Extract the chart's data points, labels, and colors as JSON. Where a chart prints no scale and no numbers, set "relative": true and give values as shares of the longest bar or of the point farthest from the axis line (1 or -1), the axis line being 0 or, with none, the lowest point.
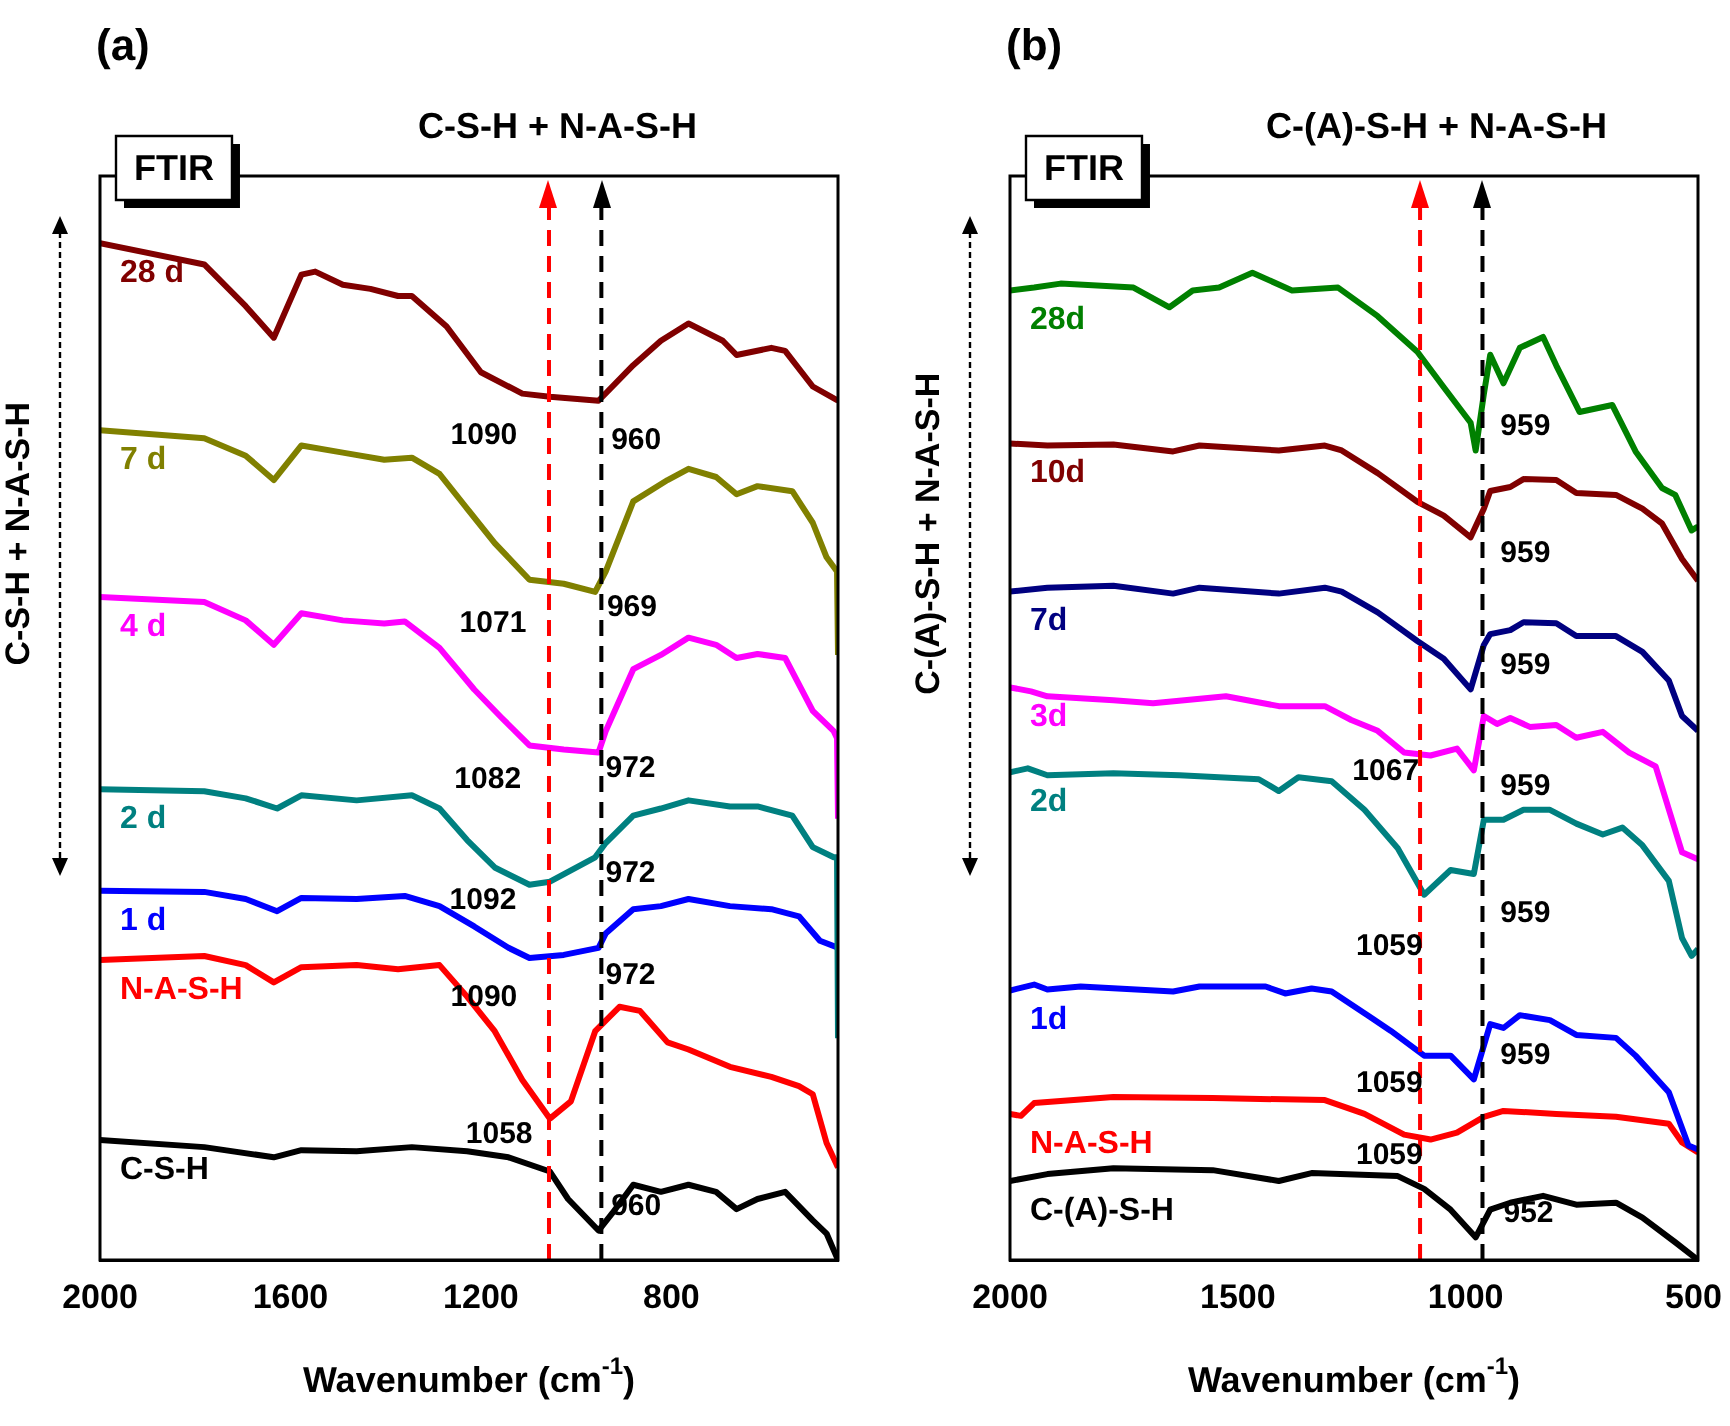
{
  "chart_data": [
    {
      "type": "line",
      "title": "C-S-H + N-A-S-H",
      "xlabel": "Wavenumber (cm$^{-1}$)",
      "ylabel": "C-S-H + N-A-S-H",
      "relative": true,
      "marker": "none",
      "xlim": [
        2000,
        450
      ],
      "xticks": [
        2000,
        1600,
        1200,
        800
      ],
      "series": [
        {
          "name": "28 d",
          "color": "#800000",
          "x": [
            2000,
            1781,
            1694,
            1635,
            1577,
            1548,
            1490,
            1432,
            1374,
            1345,
            1272,
            1200,
            1113,
            1055,
            953,
            880,
            822,
            764,
            692,
            663,
            590,
            561,
            503,
            450
          ],
          "values": [
            1.0,
            0.979,
            0.938,
            0.907,
            0.969,
            0.972,
            0.959,
            0.955,
            0.948,
            0.948,
            0.918,
            0.873,
            0.852,
            0.849,
            0.845,
            0.88,
            0.904,
            0.921,
            0.904,
            0.89,
            0.897,
            0.894,
            0.859,
            0.845
          ]
        },
        {
          "name": "7 d",
          "color": "#808000",
          "x": [
            2000,
            1781,
            1694,
            1635,
            1577,
            1490,
            1403,
            1345,
            1287,
            1229,
            1171,
            1098,
            1026,
            960,
            938,
            880,
            808,
            764,
            706,
            663,
            619,
            546,
            503,
            474,
            452,
            450
          ],
          "values": [
            0.816,
            0.808,
            0.791,
            0.767,
            0.801,
            0.794,
            0.787,
            0.789,
            0.773,
            0.739,
            0.705,
            0.669,
            0.665,
            0.657,
            0.677,
            0.746,
            0.767,
            0.778,
            0.77,
            0.753,
            0.761,
            0.756,
            0.725,
            0.691,
            0.677,
            0.595
          ]
        },
        {
          "name": "4 d",
          "color": "#ff00ff",
          "x": [
            2000,
            1781,
            1694,
            1635,
            1577,
            1490,
            1403,
            1360,
            1287,
            1214,
            1156,
            1098,
            1026,
            953,
            938,
            880,
            822,
            764,
            706,
            663,
            619,
            561,
            503,
            459,
            452,
            450
          ],
          "values": [
            0.652,
            0.647,
            0.629,
            0.605,
            0.636,
            0.629,
            0.626,
            0.628,
            0.602,
            0.561,
            0.533,
            0.506,
            0.502,
            0.499,
            0.52,
            0.581,
            0.595,
            0.612,
            0.605,
            0.592,
            0.596,
            0.592,
            0.54,
            0.52,
            0.513,
            0.434
          ]
        },
        {
          "name": "2 d",
          "color": "#008080",
          "x": [
            2000,
            1781,
            1694,
            1628,
            1577,
            1461,
            1345,
            1287,
            1229,
            1171,
            1098,
            1055,
            960,
            938,
            880,
            822,
            764,
            677,
            619,
            546,
            503,
            459,
            452,
            450
          ],
          "values": [
            0.463,
            0.461,
            0.454,
            0.444,
            0.457,
            0.452,
            0.457,
            0.444,
            0.413,
            0.386,
            0.369,
            0.372,
            0.396,
            0.41,
            0.437,
            0.444,
            0.452,
            0.446,
            0.446,
            0.437,
            0.406,
            0.396,
            0.396,
            0.218
          ]
        },
        {
          "name": "1 d",
          "color": "#0000ff",
          "x": [
            2000,
            1781,
            1694,
            1628,
            1577,
            1461,
            1360,
            1287,
            1214,
            1142,
            1098,
            1026,
            953,
            938,
            880,
            822,
            764,
            677,
            590,
            532,
            488,
            450
          ],
          "values": [
            0.363,
            0.362,
            0.355,
            0.343,
            0.356,
            0.355,
            0.358,
            0.348,
            0.328,
            0.307,
            0.297,
            0.3,
            0.307,
            0.321,
            0.345,
            0.348,
            0.355,
            0.348,
            0.345,
            0.338,
            0.314,
            0.307
          ]
        },
        {
          "name": "N-A-S-H",
          "color": "#ff0000",
          "x": [
            2000,
            1781,
            1694,
            1635,
            1577,
            1461,
            1374,
            1287,
            1229,
            1171,
            1113,
            1055,
            1011,
            960,
            909,
            866,
            808,
            764,
            677,
            590,
            532,
            503,
            474,
            450
          ],
          "values": [
            0.295,
            0.299,
            0.29,
            0.273,
            0.288,
            0.29,
            0.286,
            0.29,
            0.259,
            0.225,
            0.177,
            0.139,
            0.156,
            0.225,
            0.249,
            0.245,
            0.214,
            0.207,
            0.19,
            0.18,
            0.171,
            0.163,
            0.115,
            0.091
          ]
        },
        {
          "name": "C-S-H",
          "color": "#000000",
          "x": [
            2000,
            1781,
            1635,
            1577,
            1461,
            1345,
            1229,
            1142,
            1055,
            1017,
            953,
            924,
            880,
            822,
            764,
            706,
            663,
            619,
            561,
            503,
            474,
            450
          ],
          "values": [
            0.118,
            0.111,
            0.101,
            0.108,
            0.107,
            0.111,
            0.107,
            0.101,
            0.087,
            0.06,
            0.029,
            0.046,
            0.074,
            0.067,
            0.074,
            0.067,
            0.05,
            0.06,
            0.067,
            0.039,
            0.026,
            0.0
          ]
        }
      ],
      "ref_lines": [
        {
          "axis": "x",
          "value": 1057,
          "color": "#ff0000",
          "line_style": "dashed"
        },
        {
          "axis": "x",
          "value": 947,
          "color": "#000000",
          "line_style": "dashed"
        }
      ],
      "annotations": [
        "(a)",
        "FTIR",
        {
          "text": "1090",
          "x": 1090,
          "y": 0.85
        },
        {
          "text": "960",
          "x": 960,
          "y": 0.845
        },
        {
          "text": "1071",
          "x": 1071,
          "y": 0.665
        },
        {
          "text": "969",
          "x": 969,
          "y": 0.657
        },
        {
          "text": "1082",
          "x": 1082,
          "y": 0.5
        },
        {
          "text": "972",
          "x": 972,
          "y": 0.499
        },
        {
          "text": "1092",
          "x": 1092,
          "y": 0.369
        },
        {
          "text": "972",
          "x": 972,
          "y": 0.396
        },
        {
          "text": "1090",
          "x": 1090,
          "y": 0.297
        },
        {
          "text": "972",
          "x": 972,
          "y": 0.307
        },
        {
          "text": "1058",
          "x": 1058,
          "y": 0.139
        },
        {
          "text": "960",
          "x": 960,
          "y": 0.029
        }
      ]
    },
    {
      "type": "line",
      "title": "C-(A)-S-H + N-A-S-H",
      "xlabel": "Wavenumber (cm$^{-1}$)",
      "ylabel": "C-(A)-S-H + N-A-S-H",
      "relative": true,
      "marker": "none",
      "xlim": [
        2000,
        490
      ],
      "xticks": [
        2000,
        1500,
        1000,
        500
      ],
      "series": [
        {
          "name": "28d",
          "color": "#008000",
          "x": [
            2000,
            1947,
            1889,
            1729,
            1650,
            1599,
            1541,
            1468,
            1381,
            1280,
            1193,
            1106,
            1048,
            989,
            978,
            960,
            946,
            917,
            881,
            830,
            801,
            750,
            678,
            627,
            569,
            540,
            504,
            490
          ],
          "values": [
            0.982,
            0.985,
            0.989,
            0.985,
            0.965,
            0.982,
            0.985,
            1.0,
            0.982,
            0.985,
            0.956,
            0.92,
            0.884,
            0.848,
            0.82,
            0.877,
            0.917,
            0.888,
            0.924,
            0.935,
            0.906,
            0.859,
            0.866,
            0.819,
            0.782,
            0.775,
            0.739,
            0.743
          ]
        },
        {
          "name": "10d",
          "color": "#800000",
          "x": [
            2000,
            1918,
            1773,
            1642,
            1584,
            1410,
            1309,
            1272,
            1193,
            1106,
            1048,
            989,
            960,
            946,
            902,
            873,
            801,
            757,
            670,
            612,
            569,
            525,
            490
          ],
          "values": [
            0.827,
            0.825,
            0.826,
            0.819,
            0.825,
            0.82,
            0.825,
            0.82,
            0.797,
            0.768,
            0.754,
            0.732,
            0.761,
            0.779,
            0.783,
            0.791,
            0.79,
            0.777,
            0.775,
            0.761,
            0.746,
            0.71,
            0.688
          ]
        },
        {
          "name": "7d",
          "color": "#000080",
          "x": [
            2000,
            1918,
            1773,
            1642,
            1584,
            1410,
            1309,
            1272,
            1193,
            1106,
            1048,
            989,
            960,
            946,
            902,
            873,
            801,
            757,
            670,
            612,
            554,
            525,
            490
          ],
          "values": [
            0.677,
            0.681,
            0.683,
            0.675,
            0.681,
            0.675,
            0.681,
            0.677,
            0.656,
            0.627,
            0.609,
            0.578,
            0.623,
            0.634,
            0.638,
            0.646,
            0.645,
            0.632,
            0.632,
            0.616,
            0.587,
            0.551,
            0.536
          ]
        },
        {
          "name": "3d",
          "color": "#ff00ff",
          "x": [
            2000,
            1954,
            1918,
            1773,
            1686,
            1526,
            1410,
            1309,
            1251,
            1193,
            1135,
            1077,
            1019,
            982,
            960,
            931,
            902,
            859,
            801,
            757,
            699,
            641,
            583,
            525,
            490
          ],
          "values": [
            0.58,
            0.576,
            0.571,
            0.567,
            0.564,
            0.571,
            0.561,
            0.561,
            0.547,
            0.536,
            0.514,
            0.511,
            0.518,
            0.496,
            0.551,
            0.543,
            0.549,
            0.54,
            0.542,
            0.529,
            0.535,
            0.514,
            0.5,
            0.413,
            0.406
          ]
        },
        {
          "name": "2d",
          "color": "#008080",
          "x": [
            2000,
            1961,
            1918,
            1773,
            1628,
            1454,
            1410,
            1367,
            1294,
            1222,
            1149,
            1091,
            1033,
            982,
            960,
            917,
            873,
            815,
            757,
            699,
            656,
            612,
            554,
            525,
            504,
            490
          ],
          "values": [
            0.494,
            0.498,
            0.491,
            0.493,
            0.491,
            0.487,
            0.475,
            0.489,
            0.485,
            0.456,
            0.417,
            0.37,
            0.395,
            0.391,
            0.446,
            0.446,
            0.456,
            0.456,
            0.442,
            0.431,
            0.438,
            0.42,
            0.384,
            0.326,
            0.308,
            0.315
          ]
        },
        {
          "name": "1d",
          "color": "#0000ff",
          "x": [
            2000,
            1947,
            1918,
            1845,
            1642,
            1584,
            1439,
            1396,
            1338,
            1294,
            1222,
            1164,
            1091,
            1033,
            982,
            946,
            917,
            881,
            815,
            757,
            670,
            627,
            554,
            511,
            490
          ],
          "values": [
            0.273,
            0.279,
            0.274,
            0.277,
            0.272,
            0.277,
            0.277,
            0.27,
            0.275,
            0.272,
            0.25,
            0.232,
            0.207,
            0.207,
            0.183,
            0.239,
            0.235,
            0.248,
            0.243,
            0.228,
            0.225,
            0.207,
            0.17,
            0.116,
            0.112
          ]
        },
        {
          "name": "N-A-S-H",
          "color": "#ff0000",
          "x": [
            2000,
            1976,
            1947,
            1773,
            1555,
            1309,
            1222,
            1135,
            1077,
            1019,
            960,
            917,
            801,
            670,
            554,
            525,
            490
          ],
          "values": [
            0.148,
            0.146,
            0.159,
            0.165,
            0.164,
            0.162,
            0.148,
            0.127,
            0.122,
            0.129,
            0.145,
            0.151,
            0.148,
            0.145,
            0.138,
            0.119,
            0.109
          ]
        },
        {
          "name": "C-(A)-S-H",
          "color": "#000000",
          "x": [
            2000,
            1918,
            1773,
            1555,
            1410,
            1338,
            1149,
            1091,
            1033,
            978,
            946,
            902,
            830,
            757,
            670,
            612,
            540,
            490
          ],
          "values": [
            0.08,
            0.087,
            0.093,
            0.091,
            0.08,
            0.088,
            0.085,
            0.072,
            0.051,
            0.023,
            0.051,
            0.058,
            0.065,
            0.056,
            0.058,
            0.043,
            0.018,
            0.0
          ]
        }
      ],
      "ref_lines": [
        {
          "axis": "x",
          "value": 1100,
          "color": "#ff0000",
          "line_style": "dashed"
        },
        {
          "axis": "x",
          "value": 963,
          "color": "#000000",
          "line_style": "dashed"
        }
      ],
      "annotations": [
        "(b)",
        "FTIR",
        {
          "text": "959",
          "x": 959,
          "y": 0.82
        },
        {
          "text": "959",
          "x": 959,
          "y": 0.732
        },
        {
          "text": "959",
          "x": 959,
          "y": 0.578
        },
        {
          "text": "1067",
          "x": 1067,
          "y": 0.511
        },
        {
          "text": "959",
          "x": 959,
          "y": 0.496
        },
        {
          "text": "1059",
          "x": 1059,
          "y": 0.37
        },
        {
          "text": "959",
          "x": 959,
          "y": 0.391
        },
        {
          "text": "1059",
          "x": 1059,
          "y": 0.207
        },
        {
          "text": "959",
          "x": 959,
          "y": 0.183
        },
        {
          "text": "1059",
          "x": 1059,
          "y": 0.122
        },
        {
          "text": "952",
          "x": 952,
          "y": 0.023
        }
      ]
    }
  ]
}
